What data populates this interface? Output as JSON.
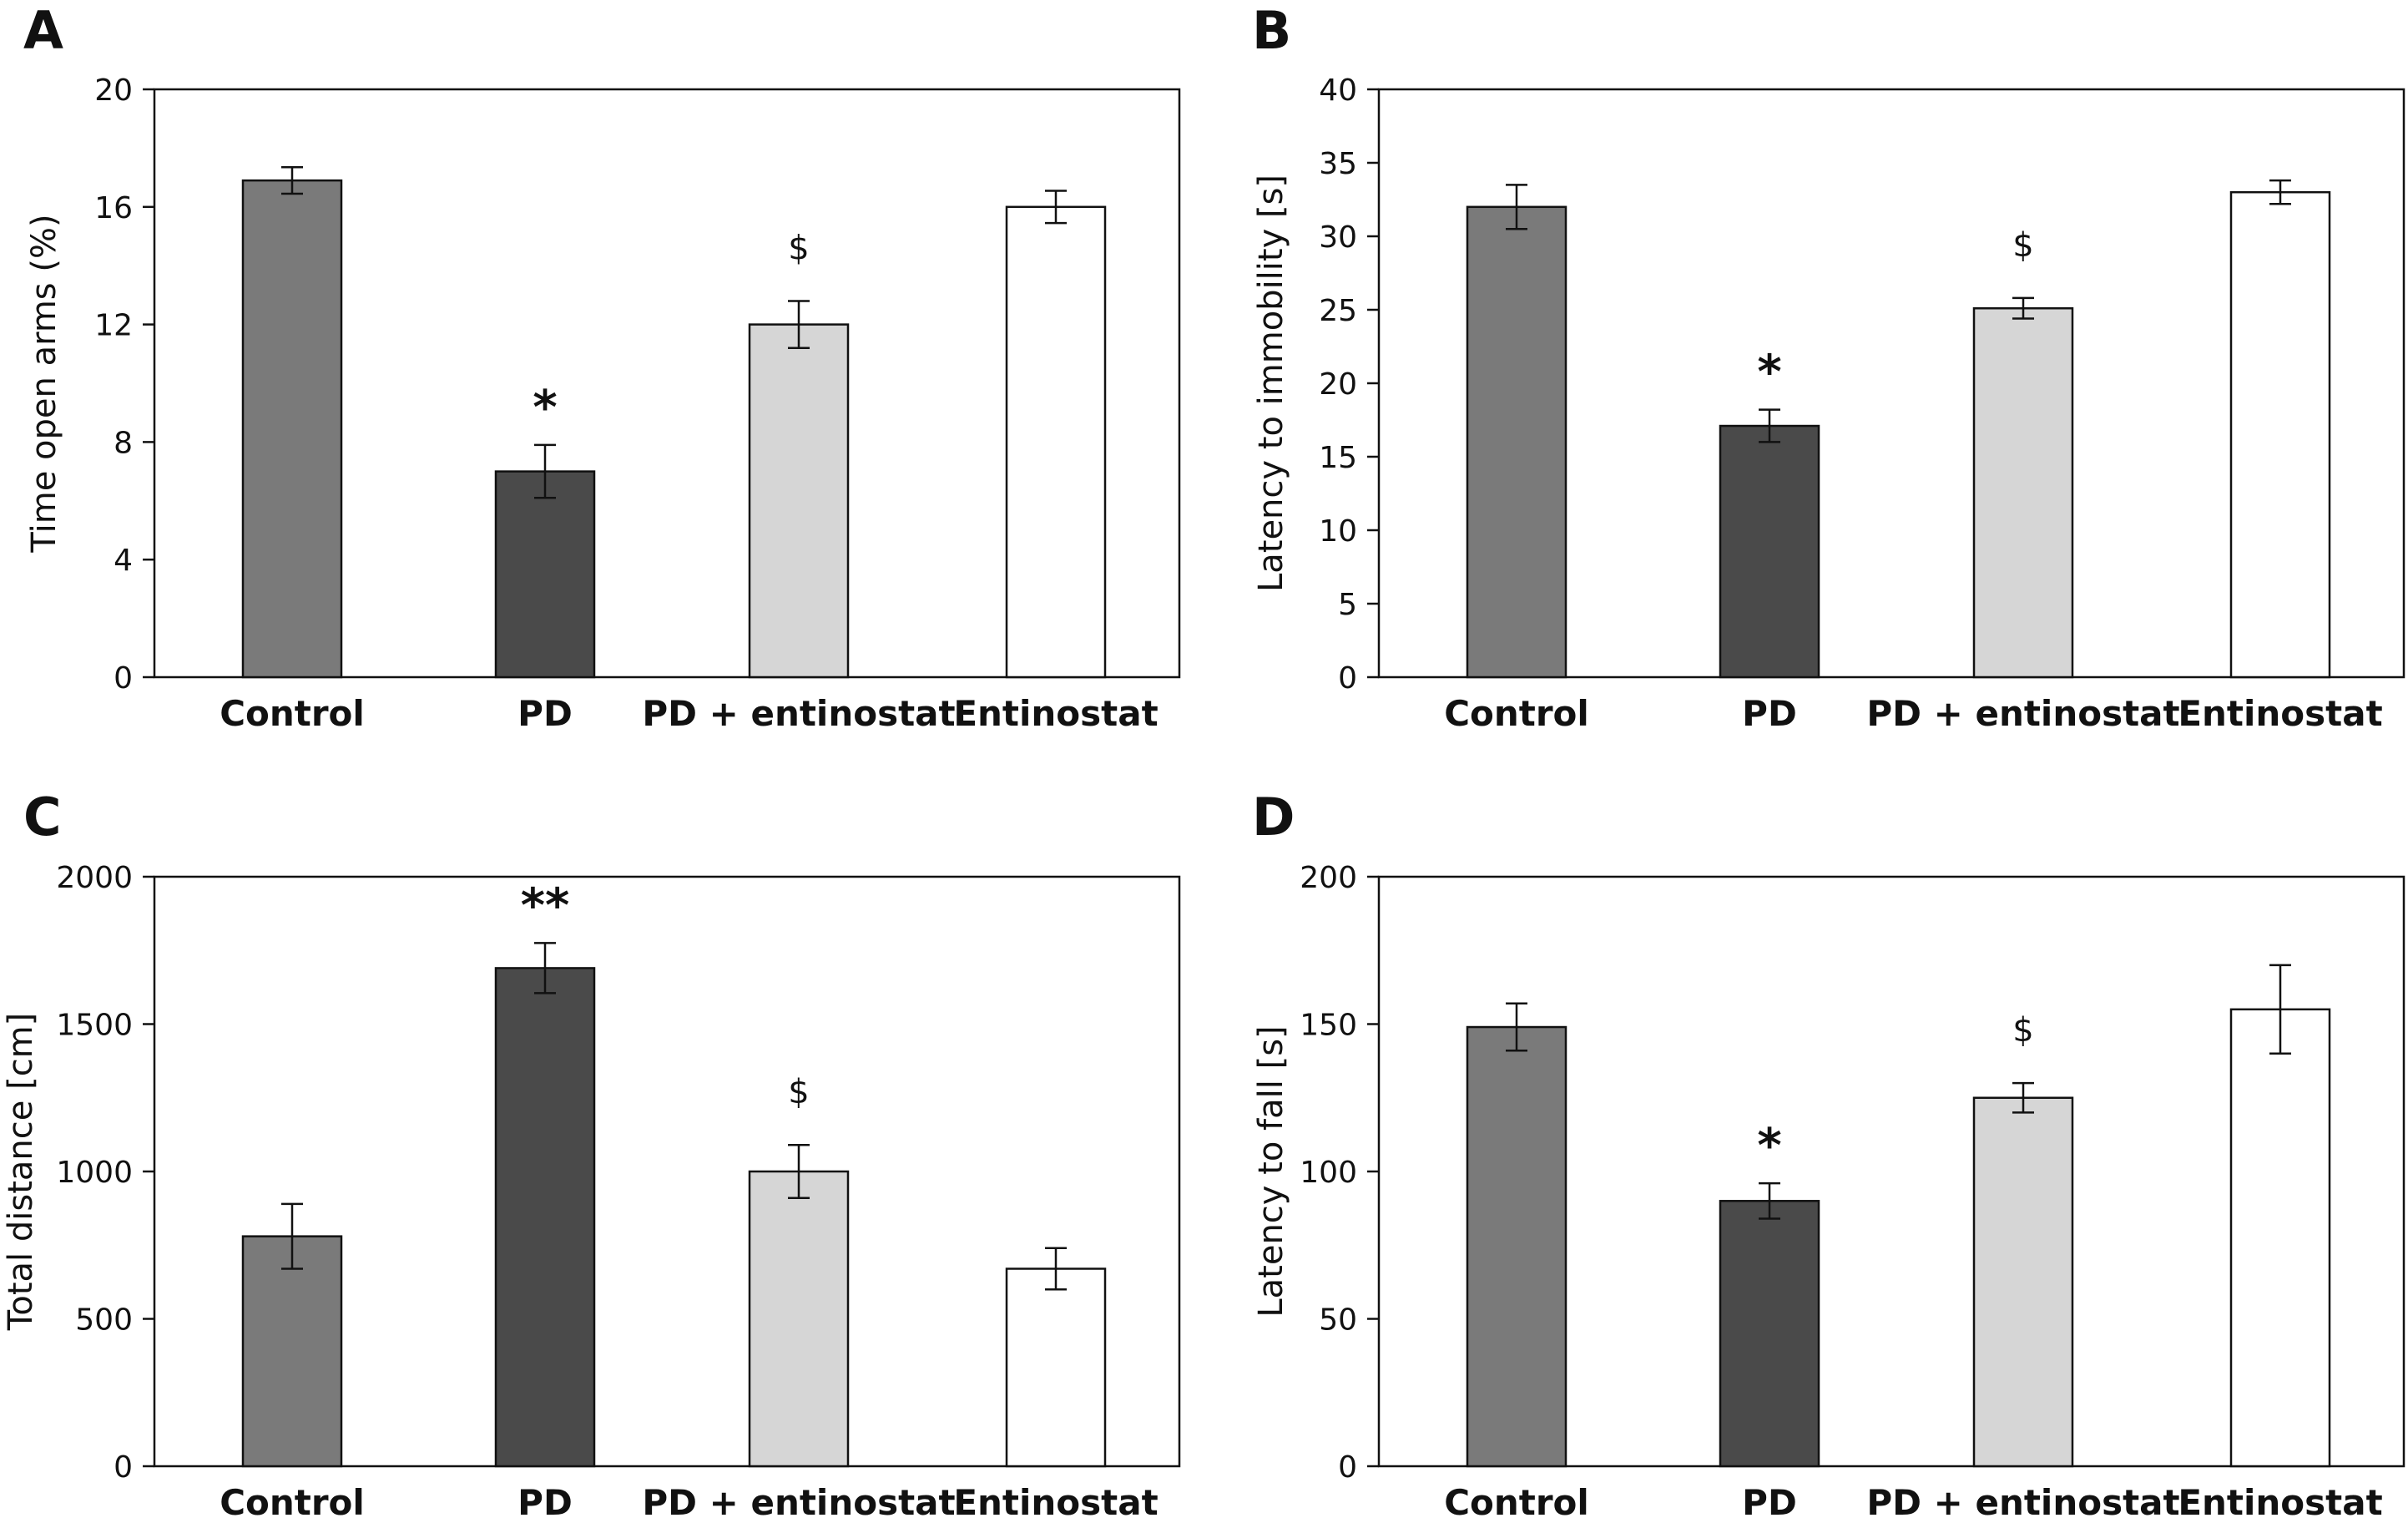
{
  "chart_data": [
    {
      "panel": "A",
      "type": "bar",
      "categories": [
        "Control",
        "PD",
        "PD + entinostat",
        "Entinostat"
      ],
      "values": [
        16.9,
        7.0,
        12.0,
        16.0
      ],
      "errors": [
        0.45,
        0.9,
        0.8,
        0.55
      ],
      "annotations": [
        "",
        "*",
        "$",
        ""
      ],
      "colors": [
        "#7a7a7a",
        "#4a4a4a",
        "#d6d6d6",
        "#ffffff"
      ],
      "ylabel": "Time open arms (%)",
      "ylim": [
        0,
        20
      ],
      "yticks": [
        0,
        4,
        8,
        12,
        16,
        20
      ],
      "grid": false
    },
    {
      "panel": "B",
      "type": "bar",
      "categories": [
        "Control",
        "PD",
        "PD + entinostat",
        "Entinostat"
      ],
      "values": [
        32.0,
        17.1,
        25.1,
        33.0
      ],
      "errors": [
        1.5,
        1.1,
        0.7,
        0.8
      ],
      "annotations": [
        "",
        "*",
        "$",
        ""
      ],
      "colors": [
        "#7a7a7a",
        "#4a4a4a",
        "#d6d6d6",
        "#ffffff"
      ],
      "ylabel": "Latency to immobility [s]",
      "ylim": [
        0,
        40
      ],
      "yticks": [
        0,
        5,
        10,
        15,
        20,
        25,
        30,
        35,
        40
      ],
      "grid": false
    },
    {
      "panel": "C",
      "type": "bar",
      "categories": [
        "Control",
        "PD",
        "PD + entinostat",
        "Entinostat"
      ],
      "values": [
        780,
        1690,
        1000,
        670
      ],
      "errors": [
        110,
        85,
        90,
        70
      ],
      "annotations": [
        "",
        "**",
        "$",
        ""
      ],
      "colors": [
        "#7a7a7a",
        "#4a4a4a",
        "#d6d6d6",
        "#ffffff"
      ],
      "ylabel": "Total distance [cm]",
      "ylim": [
        0,
        2000
      ],
      "yticks": [
        0,
        500,
        1000,
        1500,
        2000
      ],
      "grid": false
    },
    {
      "panel": "D",
      "type": "bar",
      "categories": [
        "Control",
        "PD",
        "PD + entinostat",
        "Entinostat"
      ],
      "values": [
        149,
        90,
        125,
        155
      ],
      "errors": [
        8,
        6,
        5,
        15
      ],
      "annotations": [
        "",
        "*",
        "$",
        ""
      ],
      "colors": [
        "#7a7a7a",
        "#4a4a4a",
        "#d6d6d6",
        "#ffffff"
      ],
      "ylabel": "Latency to fall [s]",
      "ylim": [
        0,
        200
      ],
      "yticks": [
        0,
        50,
        100,
        150,
        200
      ],
      "grid": false
    }
  ]
}
